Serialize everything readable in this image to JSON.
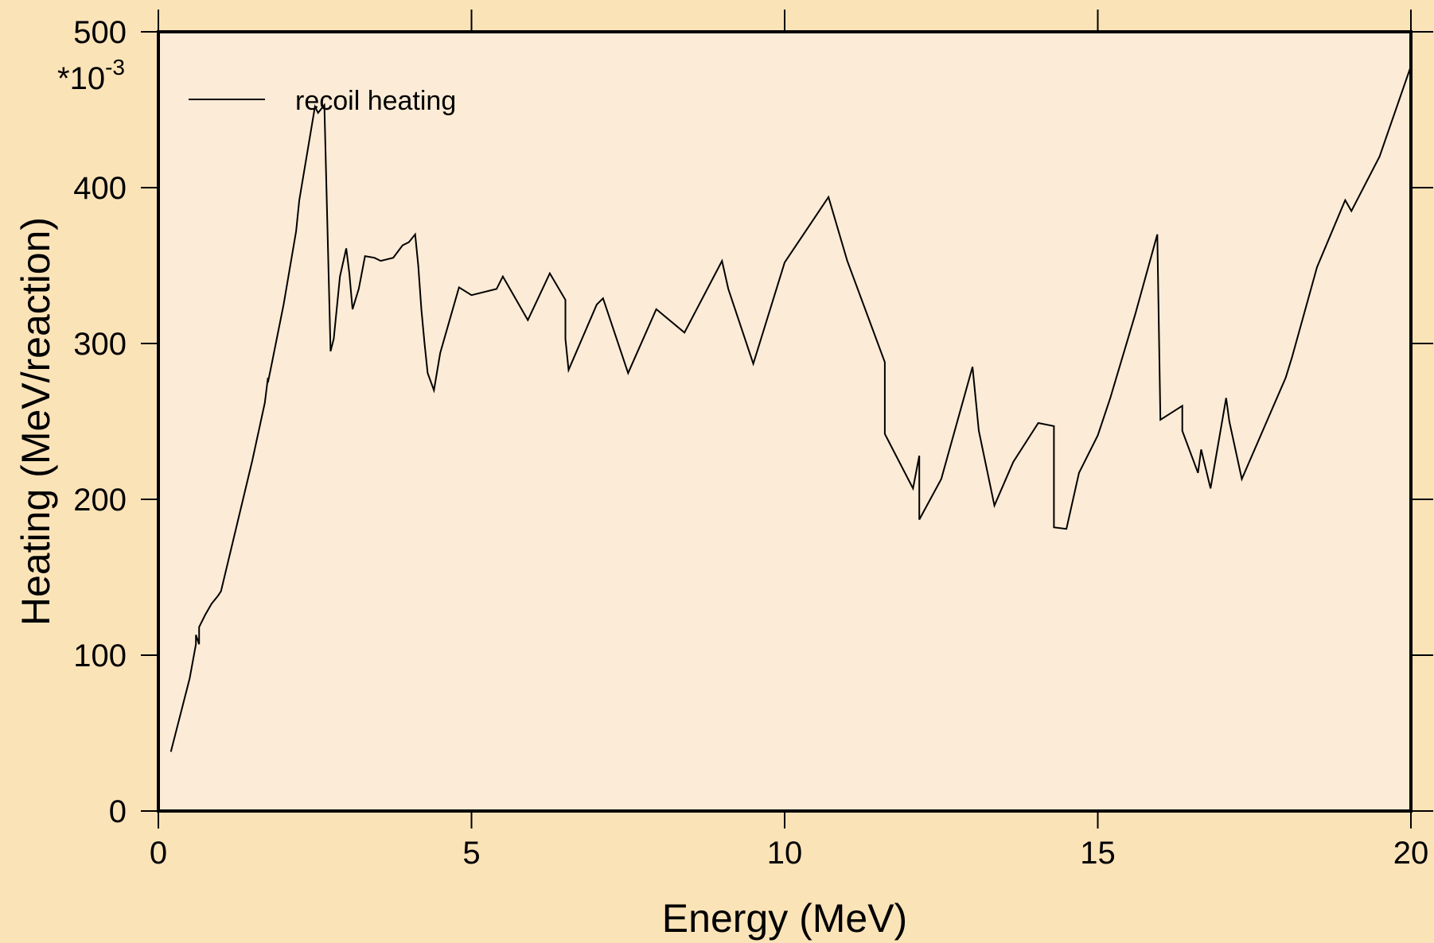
{
  "chart_data": {
    "type": "line",
    "title": "",
    "xlabel": "Energy (MeV)",
    "ylabel": "Heating (MeV/reaction)",
    "y_multiplier_label": "*10",
    "y_multiplier_exp": "-3",
    "xlim": [
      0,
      20
    ],
    "ylim": [
      0,
      500
    ],
    "xticks": [
      0,
      5,
      10,
      15,
      20
    ],
    "yticks": [
      0,
      100,
      200,
      300,
      400,
      500
    ],
    "xtick_labels": [
      "0",
      "5",
      "10",
      "15",
      "20"
    ],
    "ytick_labels": [
      "0",
      "100",
      "200",
      "300",
      "400",
      "500"
    ],
    "grid": false,
    "legend_position": "top-left",
    "colors": {
      "background": "#fbe3b8",
      "plot_area": "#fcebd6",
      "line": "#000000"
    },
    "series": [
      {
        "name": "recoil heating",
        "x": [
          0.2,
          0.5,
          0.6,
          0.6,
          0.65,
          0.65,
          0.75,
          0.85,
          0.95,
          1.0,
          1.5,
          1.7,
          1.75,
          1.75,
          1.8,
          2.0,
          2.2,
          2.25,
          2.5,
          2.55,
          2.65,
          2.75,
          2.8,
          2.9,
          3.0,
          3.05,
          3.1,
          3.2,
          3.3,
          3.45,
          3.55,
          3.75,
          3.9,
          4.0,
          4.1,
          4.15,
          4.2,
          4.25,
          4.3,
          4.4,
          4.5,
          4.8,
          5.0,
          5.4,
          5.5,
          5.9,
          6.25,
          6.5,
          6.5,
          6.55,
          7.0,
          7.1,
          7.5,
          7.95,
          8.4,
          9.0,
          9.1,
          9.5,
          10.0,
          10.7,
          11.0,
          11.6,
          11.6,
          12.05,
          12.15,
          12.15,
          12.5,
          13.0,
          13.1,
          13.35,
          13.65,
          14.05,
          14.3,
          14.3,
          14.5,
          14.7,
          15.0,
          15.2,
          15.6,
          15.95,
          16.0,
          16.35,
          16.35,
          16.6,
          16.65,
          16.8,
          17.05,
          17.1,
          17.3,
          18.0,
          18.1,
          18.5,
          18.95,
          19.05,
          19.5,
          20.0
        ],
        "y": [
          38,
          85,
          107,
          113,
          107,
          118,
          126,
          133,
          138,
          141,
          225,
          262,
          278,
          275,
          285,
          325,
          372,
          392,
          452,
          448,
          453,
          295,
          303,
          343,
          361,
          345,
          322,
          335,
          356,
          355,
          353,
          355,
          363,
          365,
          370,
          350,
          322,
          300,
          281,
          270,
          294,
          336,
          331,
          335,
          343,
          315,
          345,
          328,
          303,
          283,
          325,
          329,
          281,
          322,
          307,
          353,
          335,
          287,
          352,
          394,
          353,
          288,
          242,
          207,
          228,
          187,
          213,
          285,
          244,
          196,
          224,
          249,
          247,
          182,
          181,
          217,
          241,
          265,
          319,
          370,
          251,
          260,
          244,
          217,
          232,
          207,
          265,
          250,
          213,
          278,
          291,
          349,
          392,
          385,
          420,
          478
        ]
      }
    ]
  }
}
